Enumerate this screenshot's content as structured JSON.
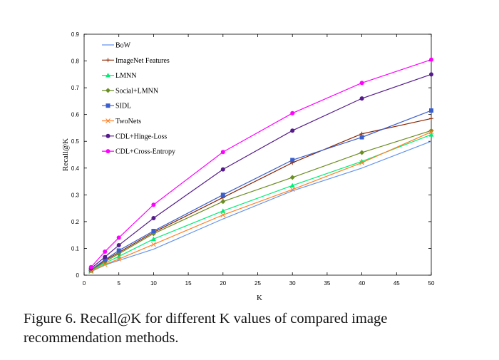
{
  "chart_data": {
    "type": "line",
    "xlabel": "K",
    "ylabel": "Recall@K",
    "xlim": [
      0,
      50
    ],
    "ylim": [
      0,
      0.9
    ],
    "xticks": [
      0,
      5,
      10,
      15,
      20,
      25,
      30,
      35,
      40,
      45,
      50
    ],
    "yticks": [
      0,
      0.1,
      0.2,
      0.3,
      0.4,
      0.5,
      0.6,
      0.7,
      0.8,
      0.9
    ],
    "ytick_labels": [
      "0",
      "0.1",
      "0.2",
      "0.3",
      "0.4",
      "0.5",
      "0.6",
      "0.7",
      "0.8",
      "0.9"
    ],
    "legend_position": "top-left",
    "x": [
      1,
      3,
      5,
      10,
      20,
      30,
      40,
      50
    ],
    "series": [
      {
        "name": "BoW",
        "color": "#6495ed",
        "marker": "none",
        "values": [
          0.013,
          0.038,
          0.055,
          0.097,
          0.21,
          0.315,
          0.4,
          0.5
        ]
      },
      {
        "name": "ImageNet Features",
        "color": "#8b2500",
        "marker": "plus",
        "values": [
          0.018,
          0.055,
          0.085,
          0.16,
          0.29,
          0.42,
          0.528,
          0.585
        ]
      },
      {
        "name": "LMNN",
        "color": "#00ee76",
        "marker": "triangle",
        "values": [
          0.016,
          0.045,
          0.07,
          0.135,
          0.24,
          0.335,
          0.425,
          0.525
        ]
      },
      {
        "name": "Social+LMNN",
        "color": "#6b8e23",
        "marker": "diamond",
        "values": [
          0.018,
          0.05,
          0.08,
          0.155,
          0.275,
          0.365,
          0.458,
          0.54
        ]
      },
      {
        "name": "SIDL",
        "color": "#3a5fcd",
        "marker": "square",
        "values": [
          0.02,
          0.058,
          0.092,
          0.165,
          0.3,
          0.43,
          0.515,
          0.615
        ]
      },
      {
        "name": "TwoNets",
        "color": "#ff7f24",
        "marker": "cross",
        "values": [
          0.014,
          0.04,
          0.06,
          0.115,
          0.225,
          0.32,
          0.42,
          0.535
        ]
      },
      {
        "name": "CDL+Hinge-Loss",
        "color": "#551a8b",
        "marker": "circle",
        "values": [
          0.025,
          0.068,
          0.112,
          0.213,
          0.395,
          0.54,
          0.66,
          0.75
        ]
      },
      {
        "name": "CDL+Cross-Entropy",
        "color": "#ff00ff",
        "marker": "circle",
        "values": [
          0.03,
          0.088,
          0.14,
          0.263,
          0.46,
          0.605,
          0.718,
          0.805
        ]
      }
    ]
  },
  "caption": "Figure 6. Recall@K for different K values of compared image recommendation methods."
}
